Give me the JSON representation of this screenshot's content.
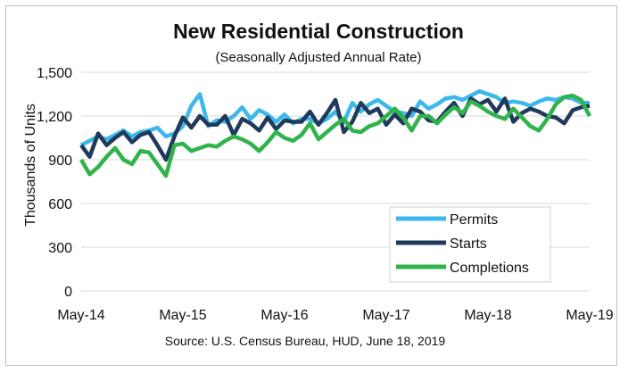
{
  "chart_data": {
    "type": "line",
    "title": "New Residential Construction",
    "subtitle": "(Seasonally Adjusted Annual Rate)",
    "ylabel": "Thousands of Units",
    "xlabel": "",
    "ylim": [
      0,
      1500
    ],
    "yticks": [
      "0",
      "300",
      "600",
      "900",
      "1,200",
      "1,500"
    ],
    "xticks": [
      "May-14",
      "May-15",
      "May-16",
      "May-17",
      "May-18",
      "May-19"
    ],
    "grid": "horizontal",
    "legend_position": "bottom-right",
    "source": "Source:  U.S. Census Bureau, HUD, June 18, 2019",
    "x_start": "May-14",
    "x_end": "May-19",
    "series": [
      {
        "name": "Permits",
        "color": "#3db8ec",
        "values": [
          1000,
          1030,
          1060,
          1040,
          1070,
          1100,
          1060,
          1090,
          1100,
          1120,
          1060,
          1080,
          1130,
          1270,
          1350,
          1130,
          1170,
          1160,
          1200,
          1260,
          1180,
          1240,
          1210,
          1160,
          1210,
          1150,
          1180,
          1180,
          1150,
          1180,
          1230,
          1160,
          1290,
          1230,
          1280,
          1310,
          1270,
          1230,
          1220,
          1200,
          1300,
          1250,
          1280,
          1320,
          1330,
          1310,
          1340,
          1370,
          1350,
          1330,
          1290,
          1300,
          1290,
          1270,
          1300,
          1320,
          1310,
          1330,
          1320,
          1290,
          1290
        ]
      },
      {
        "name": "Starts",
        "color": "#1f3a5c",
        "values": [
          1000,
          920,
          1080,
          1000,
          1050,
          1090,
          1020,
          1070,
          1090,
          1000,
          900,
          1060,
          1190,
          1120,
          1200,
          1140,
          1140,
          1200,
          1070,
          1180,
          1150,
          1100,
          1190,
          1110,
          1170,
          1160,
          1160,
          1230,
          1140,
          1220,
          1310,
          1090,
          1160,
          1290,
          1220,
          1250,
          1140,
          1210,
          1150,
          1250,
          1230,
          1170,
          1160,
          1230,
          1290,
          1200,
          1320,
          1280,
          1310,
          1230,
          1320,
          1160,
          1220,
          1250,
          1230,
          1200,
          1190,
          1150,
          1240,
          1260,
          1270
        ]
      },
      {
        "name": "Completions",
        "color": "#2fb34a",
        "values": [
          900,
          800,
          850,
          920,
          980,
          900,
          870,
          960,
          950,
          870,
          790,
          1000,
          1010,
          960,
          980,
          1000,
          990,
          1030,
          1060,
          1040,
          1010,
          960,
          1020,
          1090,
          1050,
          1030,
          1070,
          1150,
          1040,
          1090,
          1140,
          1180,
          1100,
          1090,
          1130,
          1150,
          1200,
          1250,
          1190,
          1100,
          1200,
          1200,
          1150,
          1210,
          1260,
          1220,
          1300,
          1270,
          1230,
          1200,
          1180,
          1250,
          1190,
          1130,
          1100,
          1180,
          1280,
          1330,
          1340,
          1310,
          1200
        ]
      }
    ]
  }
}
